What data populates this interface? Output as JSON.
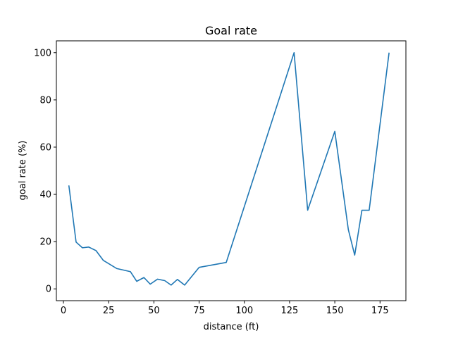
{
  "chart_data": {
    "type": "line",
    "title": "Goal rate",
    "xlabel": "distance (ft)",
    "ylabel": "goal rate (%)",
    "xlim": [
      -3.9,
      189.3
    ],
    "ylim": [
      -5,
      105
    ],
    "xticks": [
      0,
      25,
      50,
      75,
      100,
      125,
      150,
      175
    ],
    "yticks": [
      0,
      20,
      40,
      60,
      80,
      100
    ],
    "grid": false,
    "line_color": "#1f77b4",
    "series": [
      {
        "x": [
          3,
          7,
          10.5,
          14,
          18,
          22,
          29.5,
          37,
          40.5,
          44.5,
          48,
          52,
          56,
          59.5,
          63,
          67,
          75,
          90,
          127.5,
          135,
          150,
          157.5,
          161,
          165,
          169,
          180
        ],
        "y": [
          43.8,
          19.8,
          17.4,
          17.7,
          16.2,
          12.1,
          8.6,
          7.3,
          3.2,
          4.8,
          2.0,
          4.1,
          3.5,
          1.6,
          4.0,
          1.6,
          9.1,
          11.2,
          100,
          33.3,
          66.7,
          25.0,
          14.3,
          33.3,
          33.3,
          100
        ]
      }
    ]
  }
}
